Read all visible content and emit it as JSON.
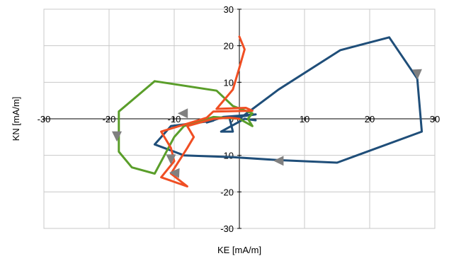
{
  "chart_data": {
    "type": "line",
    "title": "",
    "xlabel": "KE [mA/m]",
    "ylabel": "KN [mA/m]",
    "xlim": [
      -30,
      30
    ],
    "ylim": [
      -30,
      30
    ],
    "x_ticks": [
      -30,
      -20,
      -10,
      0,
      10,
      20,
      30
    ],
    "y_ticks": [
      -30,
      -20,
      -10,
      0,
      10,
      20,
      30
    ],
    "grid": true,
    "legend": "none",
    "arrow_color": "#808080",
    "series": [
      {
        "color": "#1f4e79",
        "points": [
          [
            0,
            0
          ],
          [
            6,
            8
          ],
          [
            15.5,
            18.8
          ],
          [
            23,
            22.3
          ],
          [
            27.3,
            11
          ],
          [
            28,
            -3.5
          ],
          [
            15,
            -12
          ],
          [
            6,
            -11.3
          ],
          [
            -1,
            -10.5
          ],
          [
            -8.5,
            -10
          ],
          [
            -13,
            -7
          ],
          [
            -10.5,
            -2
          ],
          [
            -4,
            -0.5
          ],
          [
            -5,
            -1
          ],
          [
            -2.5,
            0.5
          ],
          [
            2.5,
            1.2
          ],
          [
            -1.5,
            0.2
          ],
          [
            -1,
            -3.5
          ],
          [
            -2.8,
            -3.5
          ],
          [
            0.8,
            0
          ],
          [
            2.5,
            -0.4
          ]
        ],
        "arrows": [
          {
            "at": [
              27.3,
              12.5
            ],
            "dir": [
              0.05,
              -1
            ]
          },
          {
            "at": [
              6.2,
              -11.5
            ],
            "dir": [
              -1,
              0
            ]
          }
        ]
      },
      {
        "color": "#5a9e2a",
        "points": [
          [
            -13,
            10.3
          ],
          [
            -3.5,
            7.7
          ],
          [
            -1,
            3.5
          ],
          [
            2,
            1.5
          ],
          [
            1.3,
            0
          ],
          [
            2,
            -2
          ],
          [
            0,
            0
          ],
          [
            -4,
            0.5
          ],
          [
            -8.5,
            -2
          ],
          [
            -10,
            -5
          ],
          [
            -13,
            -15
          ],
          [
            -16.5,
            -13.3
          ],
          [
            -18.5,
            -9
          ],
          [
            -18.5,
            2
          ],
          [
            -13,
            10.3
          ]
        ],
        "arrows": [
          {
            "at": [
              -18.8,
              -4.5
            ],
            "dir": [
              0,
              -1
            ]
          },
          {
            "at": [
              -9.8,
              -14.8
            ],
            "dir": [
              -1,
              0.05
            ]
          }
        ]
      },
      {
        "color": "#f04e23",
        "points": [
          [
            0,
            22.5
          ],
          [
            0.8,
            19
          ],
          [
            0,
            14
          ],
          [
            -1,
            8
          ],
          [
            -3.5,
            2.7
          ],
          [
            1,
            3
          ],
          [
            2,
            2.2
          ],
          [
            -4,
            2
          ],
          [
            -5,
            0.3
          ],
          [
            -12,
            -3.5
          ],
          [
            -10.5,
            -8
          ],
          [
            -10,
            -11.6
          ],
          [
            -12,
            -16
          ],
          [
            -8,
            -18.5
          ],
          [
            -10.5,
            -15
          ],
          [
            -8,
            -8
          ],
          [
            -7,
            -5
          ],
          [
            -8,
            -2
          ],
          [
            -4,
            0
          ],
          [
            -1.5,
            0.3
          ],
          [
            0,
            0
          ]
        ],
        "arrows": [
          {
            "at": [
              -8.5,
              1.5
            ],
            "dir": [
              -1,
              0
            ]
          },
          {
            "at": [
              -10.5,
              -10.8
            ],
            "dir": [
              0,
              -1
            ]
          }
        ]
      }
    ]
  }
}
